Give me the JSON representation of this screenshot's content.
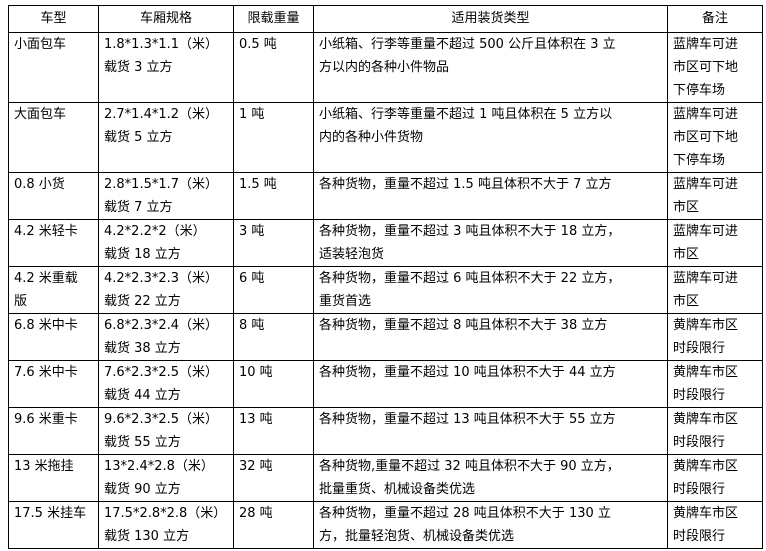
{
  "headers": [
    "车型",
    "车厢规格",
    "限载重量",
    "适用装货类型",
    "备注"
  ],
  "rows": [
    [
      "小面包车",
      "1.8*1.3*1.1（米）\n载货 3 立方",
      "0.5 吨",
      "小纸箱、行李等重量不超过 500 公斤且体积在 3 立\n方以内的各种小件物品",
      "蓝牌车可进\n市区可下地\n下停车场"
    ],
    [
      "大面包车",
      "2.7*1.4*1.2（米）\n载货 5 立方",
      "1 吨",
      "小纸箱、行李等重量不超过 1 吨且体积在 5 立方以\n内的各种小件货物",
      "蓝牌车可进\n市区可下地\n下停车场"
    ],
    [
      "0.8 小货",
      "2.8*1.5*1.7（米）\n载货 7 立方",
      "1.5 吨",
      "各种货物，重量不超过 1.5 吨且体积不大于 7 立方",
      "蓝牌车可进\n市区"
    ],
    [
      "4.2 米轻卡",
      "4.2*2.2*2（米）\n载货 18 立方",
      "3 吨",
      "各种货物，重量不超过 3 吨且体积不大于 18 立方，\n适装轻泡货",
      "蓝牌车可进\n市区"
    ],
    [
      "4.2 米重载\n版",
      "4.2*2.3*2.3（米）\n载货 22 立方",
      "6 吨",
      "各种货物，重量不超过 6 吨且体积不大于 22 立方，\n重货首选",
      "蓝牌车可进\n市区"
    ],
    [
      "6.8 米中卡",
      "6.8*2.3*2.4（米）\n载货 38 立方",
      "8 吨",
      "各种货物，重量不超过 8 吨且体积不大于 38 立方",
      "黄牌车市区\n时段限行"
    ],
    [
      "7.6 米中卡",
      "7.6*2.3*2.5（米）\n载货 44 立方",
      "10 吨",
      "各种货物，重量不超过 10 吨且体积不大于 44 立方",
      "黄牌车市区\n时段限行"
    ],
    [
      "9.6 米重卡",
      "9.6*2.3*2.5（米）\n载货 55 立方",
      "13 吨",
      "各种货物，重量不超过 13 吨且体积不大于 55 立方",
      "黄牌车市区\n时段限行"
    ],
    [
      "13 米拖挂",
      "13*2.4*2.8（米）\n载货 90 立方",
      "32 吨",
      "各种货物,重量不超过 32 吨且体积不大于 90 立方，\n批量重货、机械设备类优选",
      "黄牌车市区\n时段限行"
    ],
    [
      "17.5 米挂车",
      "17.5*2.8*2.8（米）\n载货 130 立方",
      "28 吨",
      "各种货物，重量不超过 28 吨且体积不大于 130 立\n方，批量轻泡货、机械设备类优选",
      "黄牌车市区\n时段限行"
    ]
  ]
}
